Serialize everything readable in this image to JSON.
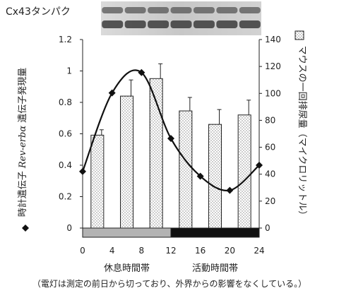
{
  "blot_label": "Cx43タンパク",
  "footnote": "（電灯は測定の前日から切っており、外界からの影響をなくしている。）",
  "chart_data": {
    "type": "bar+line",
    "x_ticks": [
      0,
      4,
      8,
      12,
      16,
      20,
      24
    ],
    "xlim": [
      0,
      24
    ],
    "left_axis": {
      "label_prefix": "時計遺伝子",
      "label_italic": "Rev-erbα",
      "label_suffix": "遺伝子発現量",
      "ylim": [
        0,
        1.2
      ],
      "ticks": [
        0,
        0.2,
        0.4,
        0.6,
        0.8,
        1,
        1.2
      ],
      "tick_labels": [
        "0",
        "0.2",
        "0.4",
        "0.6",
        "0.8",
        "1",
        "1.2"
      ]
    },
    "right_axis": {
      "label": "マウスの一回排尿量（マイクロリットル）",
      "ylim": [
        0,
        140
      ],
      "ticks": [
        0,
        20,
        40,
        60,
        80,
        100,
        120,
        140
      ],
      "tick_labels": [
        "0",
        "20",
        "40",
        "60",
        "80",
        "100",
        "120",
        "140"
      ]
    },
    "series": [
      {
        "kind": "bar",
        "axis": "right",
        "legend_marker": "dotted-square",
        "x": [
          2,
          6,
          10,
          14,
          18,
          22
        ],
        "values": [
          69,
          98,
          111,
          87,
          77,
          84
        ],
        "errors": [
          4,
          12,
          11,
          10,
          11,
          11
        ]
      },
      {
        "kind": "line",
        "axis": "left",
        "legend_marker": "diamond",
        "smooth": true,
        "x": [
          0,
          4,
          8,
          12,
          16,
          20,
          24
        ],
        "values": [
          0.36,
          0.86,
          0.99,
          0.57,
          0.33,
          0.24,
          0.4
        ]
      }
    ],
    "phase_bar": [
      {
        "label": "休息時間帯",
        "from": 0,
        "to": 12,
        "color": "#b3b3b3"
      },
      {
        "label": "活動時間帯",
        "from": 12,
        "to": 24,
        "color": "#111111"
      }
    ],
    "grid": false
  }
}
